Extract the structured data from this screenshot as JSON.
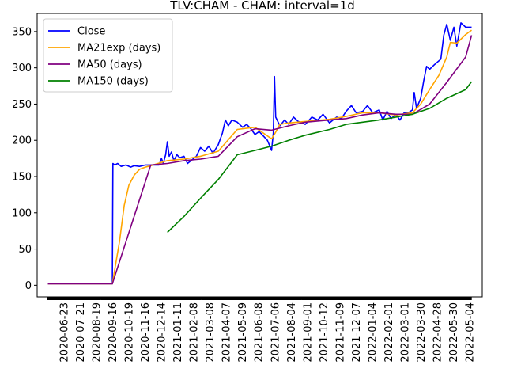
{
  "chart_data": {
    "type": "line",
    "title": "TLV:CHAM - CHAM: interval=1d",
    "xlabel": "",
    "ylabel": "",
    "ylim": [
      -16,
      375
    ],
    "yticks": [
      0,
      50,
      100,
      150,
      200,
      250,
      300,
      350
    ],
    "x_tick_labels": [
      "2020-06-23",
      "2020-07-21",
      "2020-08-19",
      "2020-09-16",
      "2020-10-19",
      "2020-11-16",
      "2020-12-14",
      "2021-01-11",
      "2021-02-08",
      "2021-03-08",
      "2021-04-07",
      "2021-05-09",
      "2021-06-08",
      "2021-07-06",
      "2021-08-04",
      "2021-09-01",
      "2021-10-12",
      "2021-11-09",
      "2021-12-07",
      "2022-01-04",
      "2022-02-01",
      "2022-03-01",
      "2022-03-30",
      "2022-04-28",
      "2022-05-30",
      "2022-05-04"
    ],
    "legend_location": "top-left",
    "series": [
      {
        "name": "Close",
        "color": "#0000ff",
        "points": [
          [
            "2020-06-23",
            2
          ],
          [
            "2020-07-21",
            2
          ],
          [
            "2020-08-19",
            2
          ],
          [
            "2020-09-16",
            2
          ],
          [
            "2020-10-10",
            2
          ],
          [
            "2020-10-11",
            168
          ],
          [
            "2020-10-14",
            166
          ],
          [
            "2020-10-19",
            168
          ],
          [
            "2020-10-25",
            164
          ],
          [
            "2020-11-02",
            166
          ],
          [
            "2020-11-10",
            163
          ],
          [
            "2020-11-16",
            165
          ],
          [
            "2020-11-25",
            164
          ],
          [
            "2020-12-05",
            166
          ],
          [
            "2020-12-14",
            166
          ],
          [
            "2020-12-28",
            166
          ],
          [
            "2021-01-01",
            175
          ],
          [
            "2021-01-04",
            168
          ],
          [
            "2021-01-08",
            180
          ],
          [
            "2021-01-11",
            198
          ],
          [
            "2021-01-14",
            178
          ],
          [
            "2021-01-18",
            184
          ],
          [
            "2021-01-22",
            172
          ],
          [
            "2021-01-27",
            180
          ],
          [
            "2021-02-01",
            176
          ],
          [
            "2021-02-08",
            178
          ],
          [
            "2021-02-14",
            168
          ],
          [
            "2021-02-20",
            172
          ],
          [
            "2021-03-01",
            178
          ],
          [
            "2021-03-08",
            190
          ],
          [
            "2021-03-15",
            185
          ],
          [
            "2021-03-22",
            192
          ],
          [
            "2021-03-29",
            182
          ],
          [
            "2021-04-07",
            194
          ],
          [
            "2021-04-14",
            210
          ],
          [
            "2021-04-19",
            228
          ],
          [
            "2021-04-24",
            220
          ],
          [
            "2021-04-30",
            228
          ],
          [
            "2021-05-09",
            225
          ],
          [
            "2021-05-18",
            218
          ],
          [
            "2021-05-25",
            222
          ],
          [
            "2021-06-01",
            216
          ],
          [
            "2021-06-08",
            208
          ],
          [
            "2021-06-15",
            212
          ],
          [
            "2021-06-22",
            206
          ],
          [
            "2021-06-29",
            200
          ],
          [
            "2021-07-06",
            186
          ],
          [
            "2021-07-09",
            210
          ],
          [
            "2021-07-11",
            288
          ],
          [
            "2021-07-13",
            232
          ],
          [
            "2021-07-20",
            220
          ],
          [
            "2021-07-28",
            228
          ],
          [
            "2021-08-04",
            222
          ],
          [
            "2021-08-12",
            232
          ],
          [
            "2021-08-20",
            226
          ],
          [
            "2021-09-01",
            222
          ],
          [
            "2021-09-12",
            232
          ],
          [
            "2021-09-22",
            228
          ],
          [
            "2021-10-01",
            236
          ],
          [
            "2021-10-12",
            224
          ],
          [
            "2021-10-24",
            232
          ],
          [
            "2021-11-01",
            230
          ],
          [
            "2021-11-09",
            240
          ],
          [
            "2021-11-18",
            248
          ],
          [
            "2021-11-26",
            238
          ],
          [
            "2021-12-07",
            240
          ],
          [
            "2021-12-15",
            248
          ],
          [
            "2021-12-24",
            238
          ],
          [
            "2022-01-04",
            242
          ],
          [
            "2022-01-10",
            228
          ],
          [
            "2022-01-17",
            240
          ],
          [
            "2022-01-24",
            230
          ],
          [
            "2022-02-01",
            236
          ],
          [
            "2022-02-08",
            228
          ],
          [
            "2022-02-15",
            238
          ],
          [
            "2022-02-22",
            238
          ],
          [
            "2022-03-01",
            242
          ],
          [
            "2022-03-04",
            266
          ],
          [
            "2022-03-08",
            244
          ],
          [
            "2022-03-15",
            258
          ],
          [
            "2022-03-20",
            282
          ],
          [
            "2022-03-25",
            302
          ],
          [
            "2022-03-30",
            298
          ],
          [
            "2022-04-08",
            305
          ],
          [
            "2022-04-18",
            312
          ],
          [
            "2022-04-23",
            345
          ],
          [
            "2022-04-28",
            360
          ],
          [
            "2022-05-04",
            338
          ],
          [
            "2022-05-10",
            356
          ],
          [
            "2022-05-15",
            330
          ],
          [
            "2022-05-22",
            362
          ],
          [
            "2022-05-30",
            356
          ],
          [
            "2022-06-09",
            356
          ]
        ]
      },
      {
        "name": "MA21exp (days)",
        "color": "#ffa500",
        "points": [
          [
            "2020-06-23",
            2
          ],
          [
            "2020-09-16",
            2
          ],
          [
            "2020-10-10",
            2
          ],
          [
            "2020-10-22",
            60
          ],
          [
            "2020-10-30",
            110
          ],
          [
            "2020-11-07",
            138
          ],
          [
            "2020-11-16",
            152
          ],
          [
            "2020-11-25",
            160
          ],
          [
            "2020-12-05",
            163
          ],
          [
            "2020-12-14",
            165
          ],
          [
            "2021-01-11",
            172
          ],
          [
            "2021-02-08",
            174
          ],
          [
            "2021-03-08",
            178
          ],
          [
            "2021-04-07",
            185
          ],
          [
            "2021-05-09",
            215
          ],
          [
            "2021-06-08",
            218
          ],
          [
            "2021-07-06",
            202
          ],
          [
            "2021-07-12",
            210
          ],
          [
            "2021-07-20",
            222
          ],
          [
            "2021-08-04",
            224
          ],
          [
            "2021-09-01",
            226
          ],
          [
            "2021-10-12",
            229
          ],
          [
            "2021-11-09",
            233
          ],
          [
            "2021-12-07",
            238
          ],
          [
            "2022-01-04",
            238
          ],
          [
            "2022-02-01",
            235
          ],
          [
            "2022-03-01",
            238
          ],
          [
            "2022-03-15",
            250
          ],
          [
            "2022-03-30",
            270
          ],
          [
            "2022-04-15",
            290
          ],
          [
            "2022-04-28",
            315
          ],
          [
            "2022-05-04",
            335
          ],
          [
            "2022-05-15",
            334
          ],
          [
            "2022-05-30",
            346
          ],
          [
            "2022-06-09",
            352
          ]
        ]
      },
      {
        "name": "MA50 (days)",
        "color": "#800080",
        "points": [
          [
            "2020-06-23",
            2
          ],
          [
            "2020-09-16",
            2
          ],
          [
            "2020-10-10",
            2
          ],
          [
            "2020-12-14",
            166
          ],
          [
            "2021-01-11",
            168
          ],
          [
            "2021-02-08",
            172
          ],
          [
            "2021-03-08",
            174
          ],
          [
            "2021-04-07",
            178
          ],
          [
            "2021-05-09",
            205
          ],
          [
            "2021-06-08",
            216
          ],
          [
            "2021-07-06",
            214
          ],
          [
            "2021-08-04",
            220
          ],
          [
            "2021-09-01",
            225
          ],
          [
            "2021-10-12",
            228
          ],
          [
            "2021-11-09",
            230
          ],
          [
            "2021-12-07",
            235
          ],
          [
            "2022-01-04",
            238
          ],
          [
            "2022-02-01",
            236
          ],
          [
            "2022-03-01",
            236
          ],
          [
            "2022-03-30",
            250
          ],
          [
            "2022-04-28",
            280
          ],
          [
            "2022-05-30",
            315
          ],
          [
            "2022-06-09",
            345
          ]
        ]
      },
      {
        "name": "MA150 (days)",
        "color": "#008000",
        "points": [
          [
            "2021-01-11",
            73
          ],
          [
            "2021-02-08",
            95
          ],
          [
            "2021-03-08",
            120
          ],
          [
            "2021-04-07",
            146
          ],
          [
            "2021-05-09",
            180
          ],
          [
            "2021-06-08",
            186
          ],
          [
            "2021-07-06",
            192
          ],
          [
            "2021-08-04",
            200
          ],
          [
            "2021-09-01",
            207
          ],
          [
            "2021-10-12",
            215
          ],
          [
            "2021-11-09",
            222
          ],
          [
            "2021-12-07",
            225
          ],
          [
            "2022-01-04",
            228
          ],
          [
            "2022-02-01",
            232
          ],
          [
            "2022-03-01",
            236
          ],
          [
            "2022-03-30",
            244
          ],
          [
            "2022-04-28",
            258
          ],
          [
            "2022-05-30",
            270
          ],
          [
            "2022-06-09",
            281
          ]
        ]
      }
    ]
  }
}
